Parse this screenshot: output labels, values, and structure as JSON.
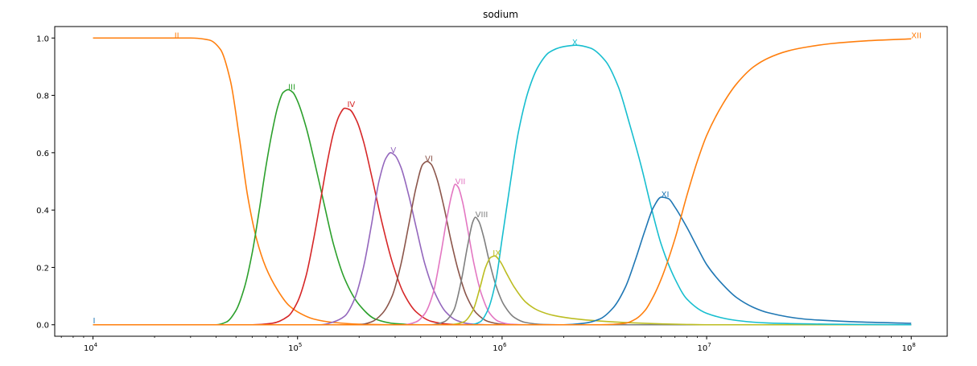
{
  "chart_data": {
    "type": "line",
    "title": "sodium",
    "xlabel": "",
    "ylabel": "",
    "xscale": "log",
    "xlim": [
      6500,
      150000000
    ],
    "ylim": [
      -0.04,
      1.04
    ],
    "grid": false,
    "legend": "none",
    "x_ticks": [
      {
        "value": 10000,
        "label": "10",
        "exp": "4"
      },
      {
        "value": 100000,
        "label": "10",
        "exp": "5"
      },
      {
        "value": 1000000,
        "label": "10",
        "exp": "6"
      },
      {
        "value": 10000000,
        "label": "10",
        "exp": "7"
      },
      {
        "value": 100000000,
        "label": "10",
        "exp": "8"
      }
    ],
    "y_ticks": [
      {
        "value": 0.0,
        "label": "0.0"
      },
      {
        "value": 0.2,
        "label": "0.2"
      },
      {
        "value": 0.4,
        "label": "0.4"
      },
      {
        "value": 0.6,
        "label": "0.6"
      },
      {
        "value": 0.8,
        "label": "0.8"
      },
      {
        "value": 1.0,
        "label": "1.0"
      }
    ],
    "series": [
      {
        "name": "I",
        "color": "#1f77b4",
        "label_x": 10000,
        "label_y": 0.005,
        "points": [
          [
            10000,
            0.0
          ],
          [
            100000000,
            0.0
          ]
        ]
      },
      {
        "name": "II",
        "color": "#ff7f0e",
        "label_x": 25000,
        "label_y": 1.0,
        "points": [
          [
            10000,
            1.0
          ],
          [
            30000,
            1.0
          ],
          [
            37000,
            0.993
          ],
          [
            42000,
            0.96
          ],
          [
            47000,
            0.85
          ],
          [
            52000,
            0.65
          ],
          [
            57000,
            0.45
          ],
          [
            63000,
            0.3
          ],
          [
            70000,
            0.2
          ],
          [
            80000,
            0.12
          ],
          [
            90000,
            0.07
          ],
          [
            100000,
            0.045
          ],
          [
            120000,
            0.02
          ],
          [
            150000,
            0.008
          ],
          [
            200000,
            0.002
          ],
          [
            300000,
            0.0
          ],
          [
            100000000,
            0.0
          ]
        ]
      },
      {
        "name": "III",
        "color": "#2ca02c",
        "label_x": 90000,
        "label_y": 0.82,
        "points": [
          [
            10000,
            0.0
          ],
          [
            40000,
            0.0
          ],
          [
            45000,
            0.01
          ],
          [
            50000,
            0.05
          ],
          [
            55000,
            0.13
          ],
          [
            60000,
            0.25
          ],
          [
            65000,
            0.4
          ],
          [
            70000,
            0.55
          ],
          [
            75000,
            0.67
          ],
          [
            80000,
            0.76
          ],
          [
            85000,
            0.81
          ],
          [
            90000,
            0.82
          ],
          [
            95000,
            0.81
          ],
          [
            100000,
            0.78
          ],
          [
            110000,
            0.69
          ],
          [
            120000,
            0.58
          ],
          [
            135000,
            0.42
          ],
          [
            150000,
            0.28
          ],
          [
            170000,
            0.16
          ],
          [
            200000,
            0.07
          ],
          [
            240000,
            0.02
          ],
          [
            300000,
            0.004
          ],
          [
            400000,
            0.0
          ],
          [
            100000000,
            0.0
          ]
        ]
      },
      {
        "name": "IV",
        "color": "#d62728",
        "label_x": 175000,
        "label_y": 0.76,
        "points": [
          [
            10000,
            0.0
          ],
          [
            60000,
            0.0
          ],
          [
            75000,
            0.005
          ],
          [
            90000,
            0.03
          ],
          [
            100000,
            0.08
          ],
          [
            110000,
            0.17
          ],
          [
            120000,
            0.3
          ],
          [
            130000,
            0.44
          ],
          [
            140000,
            0.57
          ],
          [
            150000,
            0.67
          ],
          [
            160000,
            0.73
          ],
          [
            170000,
            0.755
          ],
          [
            180000,
            0.75
          ],
          [
            195000,
            0.71
          ],
          [
            210000,
            0.64
          ],
          [
            230000,
            0.52
          ],
          [
            260000,
            0.35
          ],
          [
            290000,
            0.22
          ],
          [
            330000,
            0.11
          ],
          [
            380000,
            0.045
          ],
          [
            450000,
            0.012
          ],
          [
            550000,
            0.002
          ],
          [
            700000,
            0.0
          ],
          [
            100000000,
            0.0
          ]
        ]
      },
      {
        "name": "V",
        "color": "#9467bd",
        "label_x": 285000,
        "label_y": 0.6,
        "points": [
          [
            10000,
            0.0
          ],
          [
            130000,
            0.0
          ],
          [
            150000,
            0.01
          ],
          [
            170000,
            0.03
          ],
          [
            190000,
            0.09
          ],
          [
            210000,
            0.2
          ],
          [
            230000,
            0.35
          ],
          [
            250000,
            0.5
          ],
          [
            270000,
            0.58
          ],
          [
            285000,
            0.6
          ],
          [
            300000,
            0.59
          ],
          [
            320000,
            0.55
          ],
          [
            350000,
            0.45
          ],
          [
            380000,
            0.34
          ],
          [
            420000,
            0.21
          ],
          [
            470000,
            0.11
          ],
          [
            530000,
            0.045
          ],
          [
            600000,
            0.015
          ],
          [
            700000,
            0.003
          ],
          [
            850000,
            0.0
          ],
          [
            100000000,
            0.0
          ]
        ]
      },
      {
        "name": "VI",
        "color": "#8c564b",
        "label_x": 420000,
        "label_y": 0.57,
        "points": [
          [
            10000,
            0.0
          ],
          [
            200000,
            0.0
          ],
          [
            230000,
            0.01
          ],
          [
            260000,
            0.04
          ],
          [
            290000,
            0.1
          ],
          [
            320000,
            0.21
          ],
          [
            350000,
            0.35
          ],
          [
            380000,
            0.48
          ],
          [
            410000,
            0.56
          ],
          [
            430000,
            0.57
          ],
          [
            450000,
            0.56
          ],
          [
            480000,
            0.51
          ],
          [
            520000,
            0.41
          ],
          [
            560000,
            0.3
          ],
          [
            610000,
            0.19
          ],
          [
            670000,
            0.1
          ],
          [
            750000,
            0.04
          ],
          [
            850000,
            0.012
          ],
          [
            1000000,
            0.002
          ],
          [
            1200000,
            0.0
          ],
          [
            100000000,
            0.0
          ]
        ]
      },
      {
        "name": "VII",
        "color": "#e377c2",
        "label_x": 590000,
        "label_y": 0.49,
        "points": [
          [
            10000,
            0.0
          ],
          [
            330000,
            0.0
          ],
          [
            380000,
            0.01
          ],
          [
            420000,
            0.04
          ],
          [
            460000,
            0.11
          ],
          [
            500000,
            0.24
          ],
          [
            540000,
            0.38
          ],
          [
            570000,
            0.46
          ],
          [
            590000,
            0.49
          ],
          [
            610000,
            0.48
          ],
          [
            640000,
            0.43
          ],
          [
            680000,
            0.33
          ],
          [
            730000,
            0.21
          ],
          [
            790000,
            0.11
          ],
          [
            870000,
            0.04
          ],
          [
            960000,
            0.012
          ],
          [
            1100000,
            0.002
          ],
          [
            1300000,
            0.0
          ],
          [
            100000000,
            0.0
          ]
        ]
      },
      {
        "name": "VIII",
        "color": "#7f7f7f",
        "label_x": 740000,
        "label_y": 0.375,
        "points": [
          [
            10000,
            0.0
          ],
          [
            450000,
            0.0
          ],
          [
            520000,
            0.01
          ],
          [
            580000,
            0.05
          ],
          [
            630000,
            0.15
          ],
          [
            680000,
            0.28
          ],
          [
            720000,
            0.36
          ],
          [
            740000,
            0.375
          ],
          [
            770000,
            0.36
          ],
          [
            810000,
            0.31
          ],
          [
            860000,
            0.23
          ],
          [
            930000,
            0.14
          ],
          [
            1020000,
            0.07
          ],
          [
            1150000,
            0.025
          ],
          [
            1300000,
            0.008
          ],
          [
            1600000,
            0.001
          ],
          [
            2000000,
            0.0
          ],
          [
            100000000,
            0.0
          ]
        ]
      },
      {
        "name": "IX",
        "color": "#bcbd22",
        "label_x": 900000,
        "label_y": 0.24,
        "points": [
          [
            10000,
            0.0
          ],
          [
            550000,
            0.0
          ],
          [
            650000,
            0.01
          ],
          [
            720000,
            0.05
          ],
          [
            780000,
            0.13
          ],
          [
            830000,
            0.2
          ],
          [
            880000,
            0.235
          ],
          [
            920000,
            0.24
          ],
          [
            980000,
            0.22
          ],
          [
            1050000,
            0.18
          ],
          [
            1150000,
            0.13
          ],
          [
            1300000,
            0.08
          ],
          [
            1500000,
            0.05
          ],
          [
            1800000,
            0.032
          ],
          [
            2200000,
            0.022
          ],
          [
            3000000,
            0.013
          ],
          [
            5000000,
            0.005
          ],
          [
            8000000,
            0.001
          ],
          [
            10000000,
            0.0
          ],
          [
            100000000,
            0.0
          ]
        ]
      },
      {
        "name": "X",
        "color": "#17becf",
        "label_x": 2200000,
        "label_y": 0.975,
        "points": [
          [
            10000,
            0.0
          ],
          [
            700000,
            0.0
          ],
          [
            780000,
            0.01
          ],
          [
            850000,
            0.05
          ],
          [
            930000,
            0.15
          ],
          [
            1000000,
            0.3
          ],
          [
            1100000,
            0.5
          ],
          [
            1200000,
            0.67
          ],
          [
            1350000,
            0.82
          ],
          [
            1500000,
            0.9
          ],
          [
            1700000,
            0.95
          ],
          [
            2000000,
            0.97
          ],
          [
            2300000,
            0.975
          ],
          [
            2700000,
            0.965
          ],
          [
            3200000,
            0.92
          ],
          [
            3700000,
            0.83
          ],
          [
            4200000,
            0.7
          ],
          [
            4800000,
            0.55
          ],
          [
            5400000,
            0.4
          ],
          [
            6000000,
            0.28
          ],
          [
            7000000,
            0.16
          ],
          [
            8000000,
            0.09
          ],
          [
            10000000,
            0.04
          ],
          [
            14000000,
            0.015
          ],
          [
            20000000,
            0.006
          ],
          [
            40000000,
            0.002
          ],
          [
            100000000,
            0.0
          ]
        ]
      },
      {
        "name": "XI",
        "color": "#1f77b4",
        "label_x": 6000000,
        "label_y": 0.445,
        "points": [
          [
            10000,
            0.0
          ],
          [
            2000000,
            0.0
          ],
          [
            2500000,
            0.005
          ],
          [
            3000000,
            0.02
          ],
          [
            3500000,
            0.06
          ],
          [
            4000000,
            0.13
          ],
          [
            4500000,
            0.23
          ],
          [
            5000000,
            0.33
          ],
          [
            5500000,
            0.41
          ],
          [
            6000000,
            0.445
          ],
          [
            6500000,
            0.44
          ],
          [
            7000000,
            0.41
          ],
          [
            8000000,
            0.34
          ],
          [
            9000000,
            0.27
          ],
          [
            10000000,
            0.21
          ],
          [
            12000000,
            0.14
          ],
          [
            14000000,
            0.095
          ],
          [
            17000000,
            0.06
          ],
          [
            20000000,
            0.042
          ],
          [
            30000000,
            0.02
          ],
          [
            50000000,
            0.011
          ],
          [
            100000000,
            0.005
          ]
        ]
      },
      {
        "name": "XII",
        "color": "#ff7f0e",
        "label_x": 100000000,
        "label_y": 1.0,
        "points": [
          [
            10000,
            0.0
          ],
          [
            3000000,
            0.0
          ],
          [
            4000000,
            0.005
          ],
          [
            4500000,
            0.02
          ],
          [
            5000000,
            0.05
          ],
          [
            5500000,
            0.1
          ],
          [
            6000000,
            0.16
          ],
          [
            7000000,
            0.3
          ],
          [
            8000000,
            0.45
          ],
          [
            9000000,
            0.57
          ],
          [
            10000000,
            0.66
          ],
          [
            12000000,
            0.77
          ],
          [
            14000000,
            0.84
          ],
          [
            17000000,
            0.9
          ],
          [
            20000000,
            0.93
          ],
          [
            25000000,
            0.955
          ],
          [
            30000000,
            0.967
          ],
          [
            40000000,
            0.98
          ],
          [
            60000000,
            0.99
          ],
          [
            100000000,
            0.997
          ]
        ]
      }
    ]
  }
}
